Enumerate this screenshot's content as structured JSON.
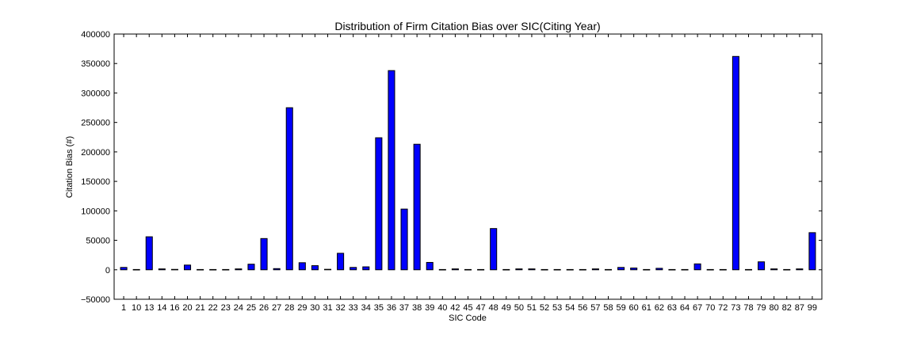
{
  "chart_data": {
    "type": "bar",
    "title": "Distribution of Firm Citation Bias over SIC(Citing Year)",
    "xlabel": "SIC Code",
    "ylabel": "Citation Bias (#)",
    "ylim": [
      -50000,
      400000
    ],
    "yticks": [
      "400000",
      "350000",
      "300000",
      "250000",
      "200000",
      "150000",
      "100000",
      "50000",
      "0",
      "−50000"
    ],
    "ytick_values": [
      400000,
      350000,
      300000,
      250000,
      200000,
      150000,
      100000,
      50000,
      0,
      -50000
    ],
    "categories": [
      "1",
      "10",
      "13",
      "14",
      "16",
      "20",
      "21",
      "22",
      "23",
      "24",
      "25",
      "26",
      "27",
      "28",
      "29",
      "30",
      "31",
      "32",
      "33",
      "34",
      "35",
      "36",
      "37",
      "38",
      "39",
      "40",
      "42",
      "45",
      "47",
      "48",
      "49",
      "50",
      "51",
      "52",
      "53",
      "54",
      "56",
      "57",
      "58",
      "59",
      "60",
      "61",
      "62",
      "63",
      "64",
      "67",
      "70",
      "72",
      "73",
      "78",
      "79",
      "80",
      "82",
      "87",
      "99"
    ],
    "values": [
      4000,
      500,
      56000,
      1500,
      700,
      8000,
      500,
      500,
      500,
      1500,
      9500,
      53000,
      2000,
      275000,
      12000,
      7000,
      800,
      28000,
      4000,
      5000,
      224000,
      338000,
      103000,
      213000,
      12500,
      500,
      1500,
      500,
      500,
      70000,
      500,
      1500,
      1500,
      500,
      500,
      500,
      500,
      1500,
      500,
      4000,
      3000,
      500,
      2500,
      500,
      500,
      10000,
      500,
      500,
      362000,
      500,
      13500,
      1500,
      500,
      1500,
      63000
    ],
    "bar_color": "#0000ff",
    "edge_color": "#000000",
    "grid": false,
    "legend": "none"
  }
}
